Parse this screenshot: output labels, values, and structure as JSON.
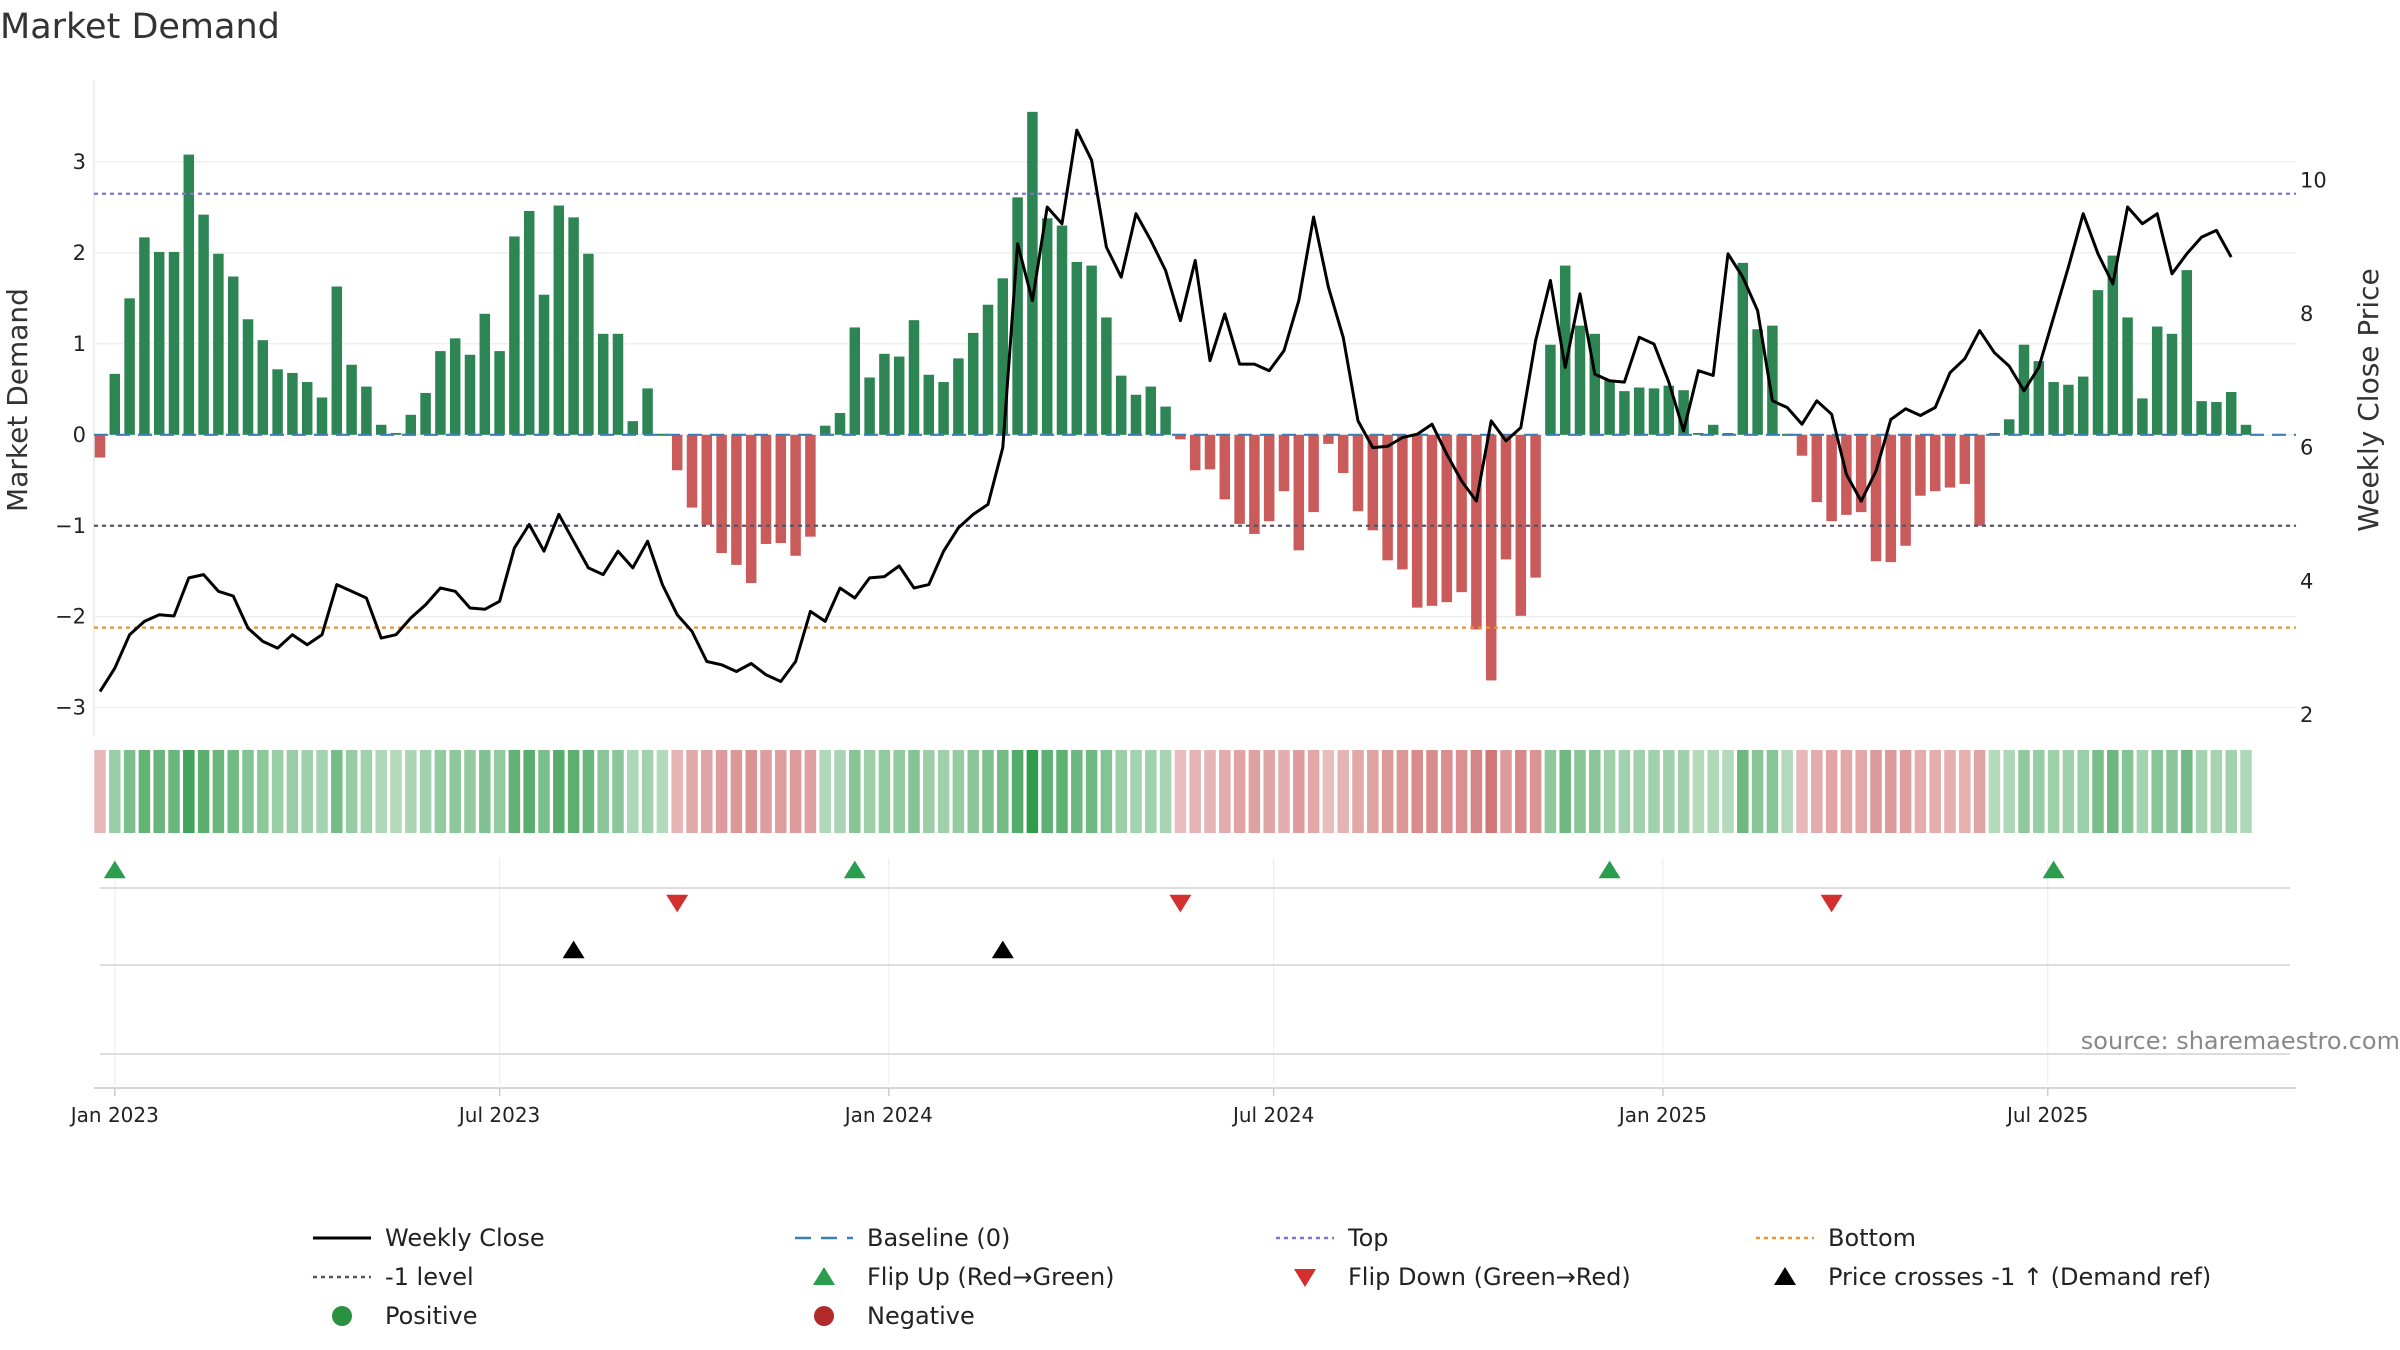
{
  "chart_data": {
    "type": "bar",
    "title": "Market Demand",
    "ylabel": "Market Demand",
    "y2label": "Weekly Close Price",
    "ylim": [
      -3.3,
      3.9
    ],
    "y2lim": [
      1.7,
      11.5
    ],
    "yticks": [
      -3,
      -2,
      -1,
      0,
      1,
      2,
      3
    ],
    "ytick_labels": [
      "−3",
      "−2",
      "−1",
      "0",
      "1",
      "2",
      "3"
    ],
    "y2ticks": [
      2,
      4,
      6,
      8,
      10
    ],
    "y2tick_labels": [
      "2",
      "4",
      "6",
      "8",
      "10"
    ],
    "x_start": "2022-12-26",
    "week_count": 148,
    "date_ticks": [
      {
        "label": "Jan 2023",
        "week": 1
      },
      {
        "label": "Jul 2023",
        "week": 27
      },
      {
        "label": "Jan 2024",
        "week": 53.3
      },
      {
        "label": "Jul 2024",
        "week": 79.3
      },
      {
        "label": "Jan 2025",
        "week": 105.6
      },
      {
        "label": "Jul 2025",
        "week": 131.6
      }
    ],
    "levels": {
      "top": 2.65,
      "minus_one": -1.0,
      "bottom": -2.12,
      "baseline": 0
    },
    "demand": [
      -0.25,
      0.67,
      1.5,
      2.17,
      2.01,
      2.01,
      3.08,
      2.42,
      1.99,
      1.74,
      1.27,
      1.04,
      0.72,
      0.68,
      0.58,
      0.41,
      1.63,
      0.77,
      0.53,
      0.11,
      0.02,
      0.22,
      0.46,
      0.92,
      1.06,
      0.88,
      1.33,
      0.92,
      2.18,
      2.46,
      1.54,
      2.52,
      2.39,
      1.99,
      1.11,
      1.11,
      0.15,
      0.51,
      0,
      -0.39,
      -0.8,
      -0.99,
      -1.3,
      -1.43,
      -1.63,
      -1.2,
      -1.19,
      -1.33,
      -1.12,
      0.1,
      0.24,
      1.18,
      0.63,
      0.89,
      0.86,
      1.26,
      0.66,
      0.58,
      0.84,
      1.12,
      1.43,
      1.72,
      2.61,
      3.55,
      2.38,
      2.3,
      1.9,
      1.86,
      1.29,
      0.65,
      0.44,
      0.53,
      0.31,
      -0.05,
      -0.39,
      -0.38,
      -0.71,
      -0.98,
      -1.09,
      -0.95,
      -0.62,
      -1.27,
      -0.85,
      -0.1,
      -0.42,
      -0.84,
      -1.05,
      -1.38,
      -1.48,
      -1.9,
      -1.88,
      -1.84,
      -1.73,
      -2.14,
      -2.7,
      -1.37,
      -1.99,
      -1.57,
      0.99,
      1.86,
      1.2,
      1.11,
      0.6,
      0.48,
      0.52,
      0.51,
      0.54,
      0.49,
      0.02,
      0.11,
      0.02,
      1.89,
      1.16,
      1.2,
      0,
      -0.23,
      -0.74,
      -0.95,
      -0.88,
      -0.85,
      -1.39,
      -1.4,
      -1.22,
      -0.67,
      -0.62,
      -0.58,
      -0.54,
      -1.0,
      0.02,
      0.17,
      0.99,
      0.81,
      0.58,
      0.55,
      0.64,
      1.59,
      1.97,
      1.29,
      0.4,
      1.19,
      1.11,
      1.81,
      0.37,
      0.36,
      0.47,
      0.11
    ],
    "close": [
      2.35,
      2.7,
      3.2,
      3.4,
      3.5,
      3.48,
      4.05,
      4.1,
      3.85,
      3.78,
      3.3,
      3.1,
      3.0,
      3.2,
      3.05,
      3.2,
      3.95,
      3.85,
      3.75,
      3.15,
      3.2,
      3.45,
      3.65,
      3.9,
      3.85,
      3.6,
      3.58,
      3.7,
      4.5,
      4.85,
      4.45,
      5.0,
      4.6,
      4.2,
      4.1,
      4.45,
      4.2,
      4.6,
      3.95,
      3.5,
      3.25,
      2.8,
      2.75,
      2.65,
      2.77,
      2.6,
      2.5,
      2.8,
      3.55,
      3.4,
      3.9,
      3.75,
      4.05,
      4.07,
      4.23,
      3.9,
      3.95,
      4.45,
      4.8,
      5.0,
      5.15,
      6.0,
      9.05,
      8.2,
      9.6,
      9.35,
      10.75,
      10.3,
      9.0,
      8.55,
      9.5,
      9.1,
      8.65,
      7.9,
      8.8,
      7.3,
      8.0,
      7.25,
      7.25,
      7.15,
      7.45,
      8.2,
      9.45,
      8.4,
      7.65,
      6.4,
      6.0,
      6.02,
      6.15,
      6.2,
      6.35,
      5.9,
      5.5,
      5.2,
      6.4,
      6.1,
      6.3,
      7.6,
      8.5,
      7.2,
      8.3,
      7.1,
      7.0,
      6.98,
      7.65,
      7.55,
      6.98,
      6.25,
      7.15,
      7.08,
      8.9,
      8.55,
      8.05,
      6.7,
      6.6,
      6.35,
      6.7,
      6.5,
      5.6,
      5.2,
      5.65,
      6.42,
      6.58,
      6.48,
      6.6,
      7.12,
      7.33,
      7.75,
      7.42,
      7.22,
      6.85,
      7.2,
      7.95,
      8.7,
      9.5,
      8.9,
      8.45,
      9.6,
      9.35,
      9.5,
      8.6,
      8.9,
      9.15,
      9.25,
      8.85
    ]
  },
  "signals": {
    "flip_up_weeks": [
      1,
      51,
      102,
      132
    ],
    "flip_down_weeks": [
      39,
      73,
      117
    ],
    "price_cross_weeks": [
      32,
      61
    ]
  },
  "source": "source: sharemaestro.com",
  "legend": [
    {
      "key": "weekly_close",
      "label": "Weekly Close"
    },
    {
      "key": "baseline",
      "label": "Baseline (0)"
    },
    {
      "key": "top",
      "label": "Top"
    },
    {
      "key": "bottom",
      "label": "Bottom"
    },
    {
      "key": "minus_one",
      "label": "-1 level"
    },
    {
      "key": "flip_up",
      "label": "Flip Up (Red→Green)"
    },
    {
      "key": "flip_down",
      "label": "Flip Down (Green→Red)"
    },
    {
      "key": "price_cross",
      "label": "Price crosses -1 ↑ (Demand ref)"
    },
    {
      "key": "positive",
      "label": "Positive"
    },
    {
      "key": "negative",
      "label": "Negative"
    }
  ],
  "colors": {
    "positive_bar": "#2e8554",
    "negative_bar": "#c95b5b",
    "close_line": "#000000",
    "baseline": "#3a7fb6",
    "top": "#7b77cc",
    "minus_one": "#555566",
    "bottom": "#e69530",
    "flip_up": "#2a9d4e",
    "flip_down": "#d32f2f",
    "price_cross": "#000000",
    "positive_dot": "#2a9140",
    "negative_dot": "#b02a2a"
  }
}
